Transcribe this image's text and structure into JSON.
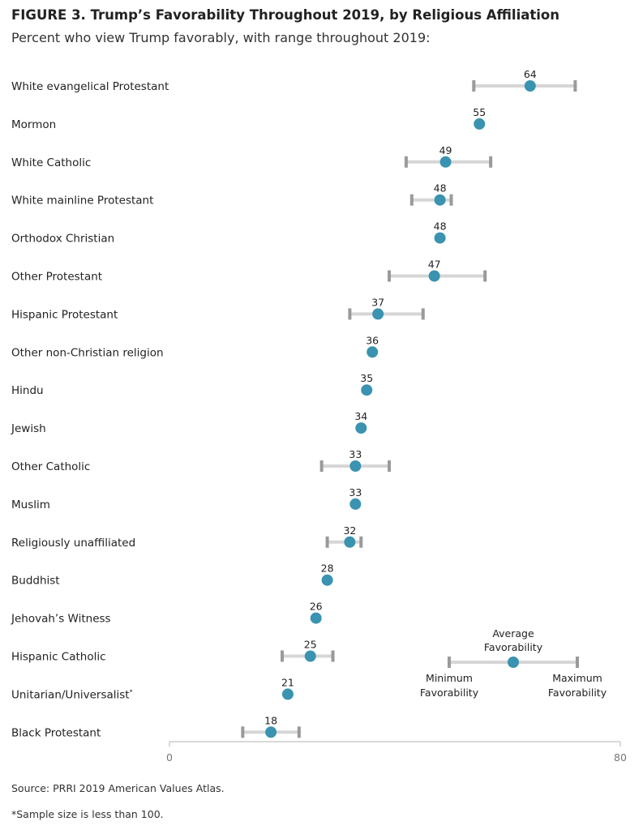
{
  "title": "FIGURE 3. Trump’s Favorability Throughout 2019, by Religious Affiliation",
  "subtitle": "Percent who view Trump favorably, with range throughout 2019:",
  "source": "Source: PRRI 2019 American Values Atlas.",
  "footnote": "*Sample size is less than 100.",
  "colors": {
    "dot": "#3a93b0",
    "range_line": "#d6d6d6",
    "range_cap": "#9a9a9a",
    "axis": "#cccccc"
  },
  "chart_data": {
    "type": "scatter",
    "title": "FIGURE 3. Trump’s Favorability Throughout 2019, by Religious Affiliation",
    "subtitle": "Percent who view Trump favorably, with range throughout 2019:",
    "xlim": [
      0,
      80
    ],
    "xticks": [
      0,
      80
    ],
    "grid": false,
    "legend": {
      "placement": "bottom-right",
      "average_label": [
        "Average",
        "Favorability"
      ],
      "min_label": [
        "Minimum",
        "Favorability"
      ],
      "max_label": [
        "Maximum",
        "Favorability"
      ]
    },
    "categories": [
      {
        "name": "White evangelical Protestant",
        "avg": 64,
        "min": 54,
        "max": 72
      },
      {
        "name": "Mormon",
        "avg": 55,
        "min": null,
        "max": null
      },
      {
        "name": "White Catholic",
        "avg": 49,
        "min": 42,
        "max": 57
      },
      {
        "name": "White mainline Protestant",
        "avg": 48,
        "min": 43,
        "max": 50
      },
      {
        "name": "Orthodox Christian",
        "avg": 48,
        "min": null,
        "max": null
      },
      {
        "name": "Other Protestant",
        "avg": 47,
        "min": 39,
        "max": 56
      },
      {
        "name": "Hispanic Protestant",
        "avg": 37,
        "min": 32,
        "max": 45
      },
      {
        "name": "Other non-Christian religion",
        "avg": 36,
        "min": null,
        "max": null
      },
      {
        "name": "Hindu",
        "avg": 35,
        "min": null,
        "max": null
      },
      {
        "name": "Jewish",
        "avg": 34,
        "min": null,
        "max": null
      },
      {
        "name": "Other Catholic",
        "avg": 33,
        "min": 27,
        "max": 39
      },
      {
        "name": "Muslim",
        "avg": 33,
        "min": null,
        "max": null
      },
      {
        "name": "Religiously unaffiliated",
        "avg": 32,
        "min": 28,
        "max": 34
      },
      {
        "name": "Buddhist",
        "avg": 28,
        "min": null,
        "max": null
      },
      {
        "name": "Jehovah’s Witness",
        "avg": 26,
        "min": null,
        "max": null
      },
      {
        "name": "Hispanic Catholic",
        "avg": 25,
        "min": 20,
        "max": 29
      },
      {
        "name": "Unitarian/Universalist",
        "name_suffix": "*",
        "avg": 21,
        "min": null,
        "max": null
      },
      {
        "name": "Black Protestant",
        "avg": 18,
        "min": 13,
        "max": 23
      }
    ]
  }
}
